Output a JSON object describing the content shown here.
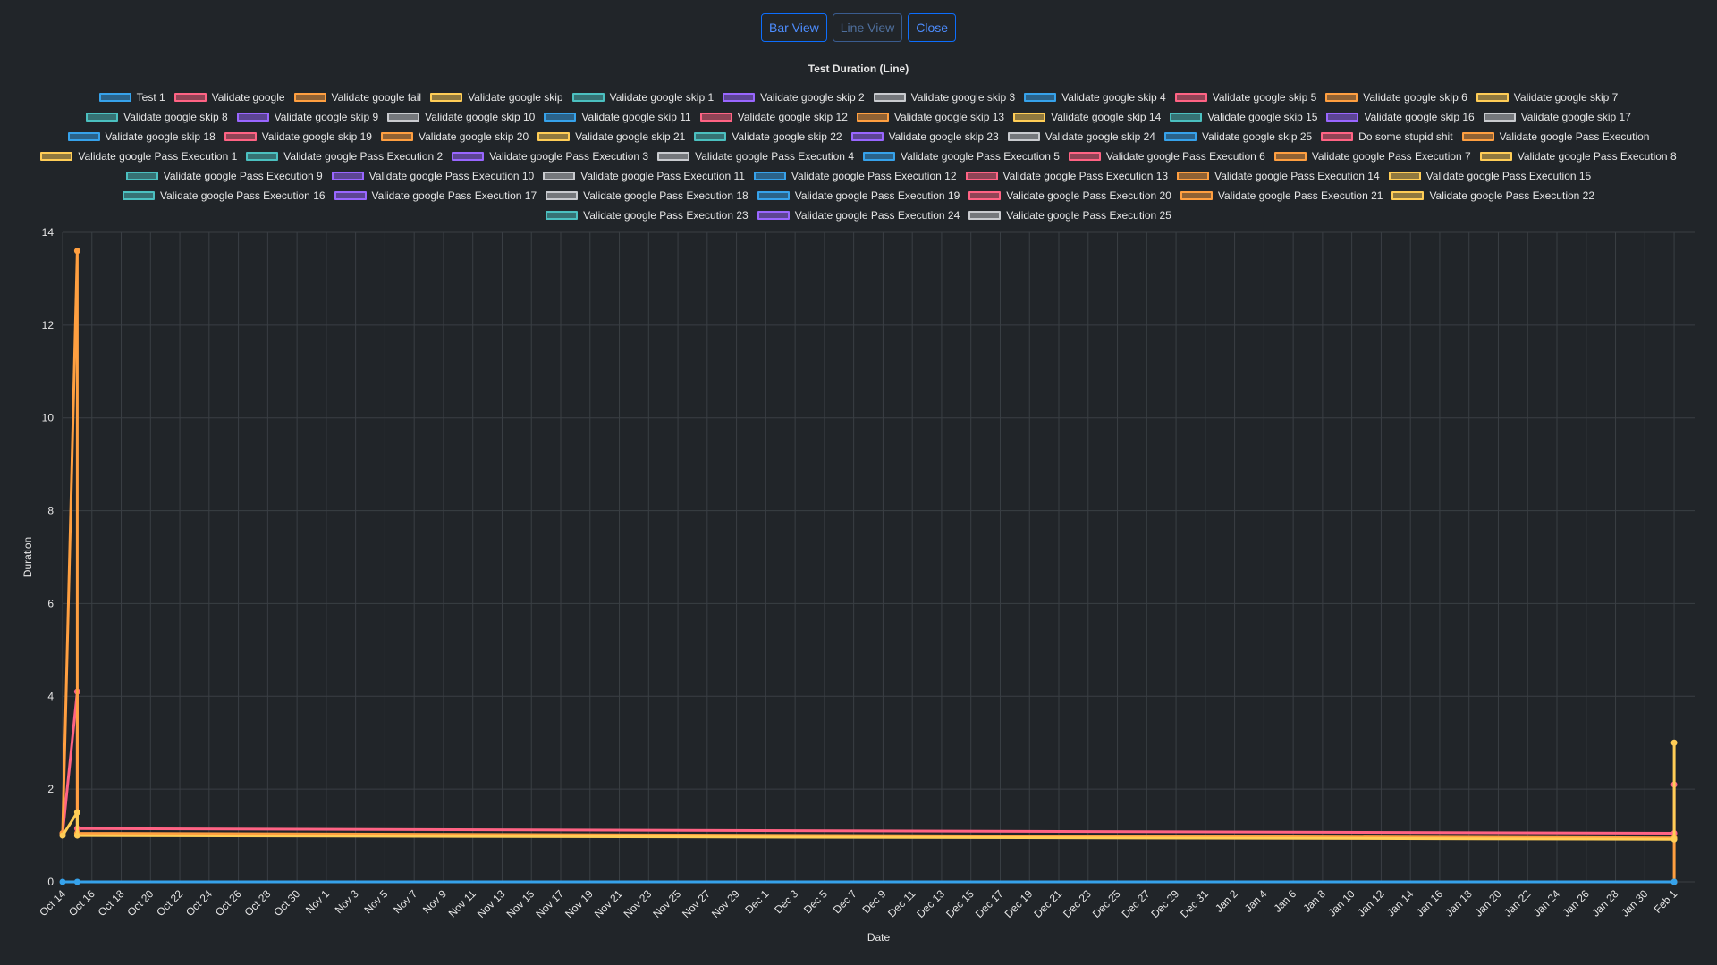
{
  "buttons": {
    "bar_view": "Bar View",
    "line_view": "Line View",
    "close": "Close"
  },
  "colors": {
    "palette": [
      "#36a2eb",
      "#ff6384",
      "#ff9f40",
      "#ffcd56",
      "#4bc0c0",
      "#9966ff",
      "#c9cbcf"
    ],
    "grid": "#3a3f44",
    "background": "#212529"
  },
  "chart_data": {
    "type": "line",
    "title": "Test Duration (Line)",
    "xlabel": "Date",
    "ylabel": "Duration",
    "ylim": [
      0,
      14
    ],
    "yticks": [
      0,
      2,
      4,
      6,
      8,
      10,
      12,
      14
    ],
    "xlim": [
      "Oct 14",
      "Feb 2"
    ],
    "xticks": [
      "Oct 14",
      "Oct 16",
      "Oct 18",
      "Oct 20",
      "Oct 22",
      "Oct 24",
      "Oct 26",
      "Oct 28",
      "Oct 30",
      "Nov 1",
      "Nov 3",
      "Nov 5",
      "Nov 7",
      "Nov 9",
      "Nov 11",
      "Nov 13",
      "Nov 15",
      "Nov 17",
      "Nov 19",
      "Nov 21",
      "Nov 23",
      "Nov 25",
      "Nov 27",
      "Nov 29",
      "Dec 1",
      "Dec 3",
      "Dec 5",
      "Dec 7",
      "Dec 9",
      "Dec 11",
      "Dec 13",
      "Dec 15",
      "Dec 17",
      "Dec 19",
      "Dec 21",
      "Dec 23",
      "Dec 25",
      "Dec 27",
      "Dec 29",
      "Dec 31",
      "Jan 2",
      "Jan 4",
      "Jan 6",
      "Jan 8",
      "Jan 10",
      "Jan 12",
      "Jan 14",
      "Jan 16",
      "Jan 18",
      "Jan 20",
      "Jan 22",
      "Jan 24",
      "Jan 26",
      "Jan 28",
      "Jan 30",
      "Feb 1"
    ],
    "grid": true,
    "legend_position": "top",
    "series": [
      {
        "name": "Test 1"
      },
      {
        "name": "Validate google"
      },
      {
        "name": "Validate google fail"
      },
      {
        "name": "Validate google skip"
      },
      {
        "name": "Validate google skip 1"
      },
      {
        "name": "Validate google skip 2"
      },
      {
        "name": "Validate google skip 3"
      },
      {
        "name": "Validate google skip 4"
      },
      {
        "name": "Validate google skip 5"
      },
      {
        "name": "Validate google skip 6"
      },
      {
        "name": "Validate google skip 7"
      },
      {
        "name": "Validate google skip 8"
      },
      {
        "name": "Validate google skip 9"
      },
      {
        "name": "Validate google skip 10"
      },
      {
        "name": "Validate google skip 11"
      },
      {
        "name": "Validate google skip 12"
      },
      {
        "name": "Validate google skip 13"
      },
      {
        "name": "Validate google skip 14"
      },
      {
        "name": "Validate google skip 15"
      },
      {
        "name": "Validate google skip 16"
      },
      {
        "name": "Validate google skip 17"
      },
      {
        "name": "Validate google skip 18"
      },
      {
        "name": "Validate google skip 19"
      },
      {
        "name": "Validate google skip 20"
      },
      {
        "name": "Validate google skip 21"
      },
      {
        "name": "Validate google skip 22"
      },
      {
        "name": "Validate google skip 23"
      },
      {
        "name": "Validate google skip 24"
      },
      {
        "name": "Validate google skip 25"
      },
      {
        "name": "Do some stupid shit"
      },
      {
        "name": "Validate google Pass Execution"
      },
      {
        "name": "Validate google Pass Execution 1"
      },
      {
        "name": "Validate google Pass Execution 2"
      },
      {
        "name": "Validate google Pass Execution 3"
      },
      {
        "name": "Validate google Pass Execution 4"
      },
      {
        "name": "Validate google Pass Execution 5"
      },
      {
        "name": "Validate google Pass Execution 6"
      },
      {
        "name": "Validate google Pass Execution 7"
      },
      {
        "name": "Validate google Pass Execution 8"
      },
      {
        "name": "Validate google Pass Execution 9"
      },
      {
        "name": "Validate google Pass Execution 10"
      },
      {
        "name": "Validate google Pass Execution 11"
      },
      {
        "name": "Validate google Pass Execution 12"
      },
      {
        "name": "Validate google Pass Execution 13"
      },
      {
        "name": "Validate google Pass Execution 14"
      },
      {
        "name": "Validate google Pass Execution 15"
      },
      {
        "name": "Validate google Pass Execution 16"
      },
      {
        "name": "Validate google Pass Execution 17"
      },
      {
        "name": "Validate google Pass Execution 18"
      },
      {
        "name": "Validate google Pass Execution 19"
      },
      {
        "name": "Validate google Pass Execution 20"
      },
      {
        "name": "Validate google Pass Execution 21"
      },
      {
        "name": "Validate google Pass Execution 22"
      },
      {
        "name": "Validate google Pass Execution 23"
      },
      {
        "name": "Validate google Pass Execution 24"
      },
      {
        "name": "Validate google Pass Execution 25"
      }
    ],
    "lines": [
      {
        "series": "Test 1",
        "color": "#36a2eb",
        "points": [
          [
            "Oct 14",
            0
          ],
          [
            "Oct 15",
            0
          ],
          [
            "Feb 1",
            0
          ]
        ]
      },
      {
        "series": "Validate google",
        "color": "#ff6384",
        "points": [
          [
            "Oct 14",
            1.05
          ],
          [
            "Oct 15",
            4.1
          ],
          [
            "Oct 15",
            1.15
          ],
          [
            "Feb 1",
            1.05
          ],
          [
            "Feb 1",
            2.1
          ]
        ]
      },
      {
        "series": "Validate google fail",
        "color": "#ff9f40",
        "points": [
          [
            "Oct 14",
            1.05
          ],
          [
            "Oct 15",
            13.6
          ],
          [
            "Oct 15",
            1.05
          ],
          [
            "Feb 1",
            0.95
          ],
          [
            "Feb 1",
            0
          ]
        ]
      },
      {
        "series": "Validate google skip",
        "color": "#ffcd56",
        "points": [
          [
            "Oct 14",
            1.0
          ],
          [
            "Oct 15",
            1.5
          ],
          [
            "Oct 15",
            1.0
          ],
          [
            "Feb 1",
            0.92
          ],
          [
            "Feb 1",
            3.0
          ]
        ]
      }
    ]
  }
}
